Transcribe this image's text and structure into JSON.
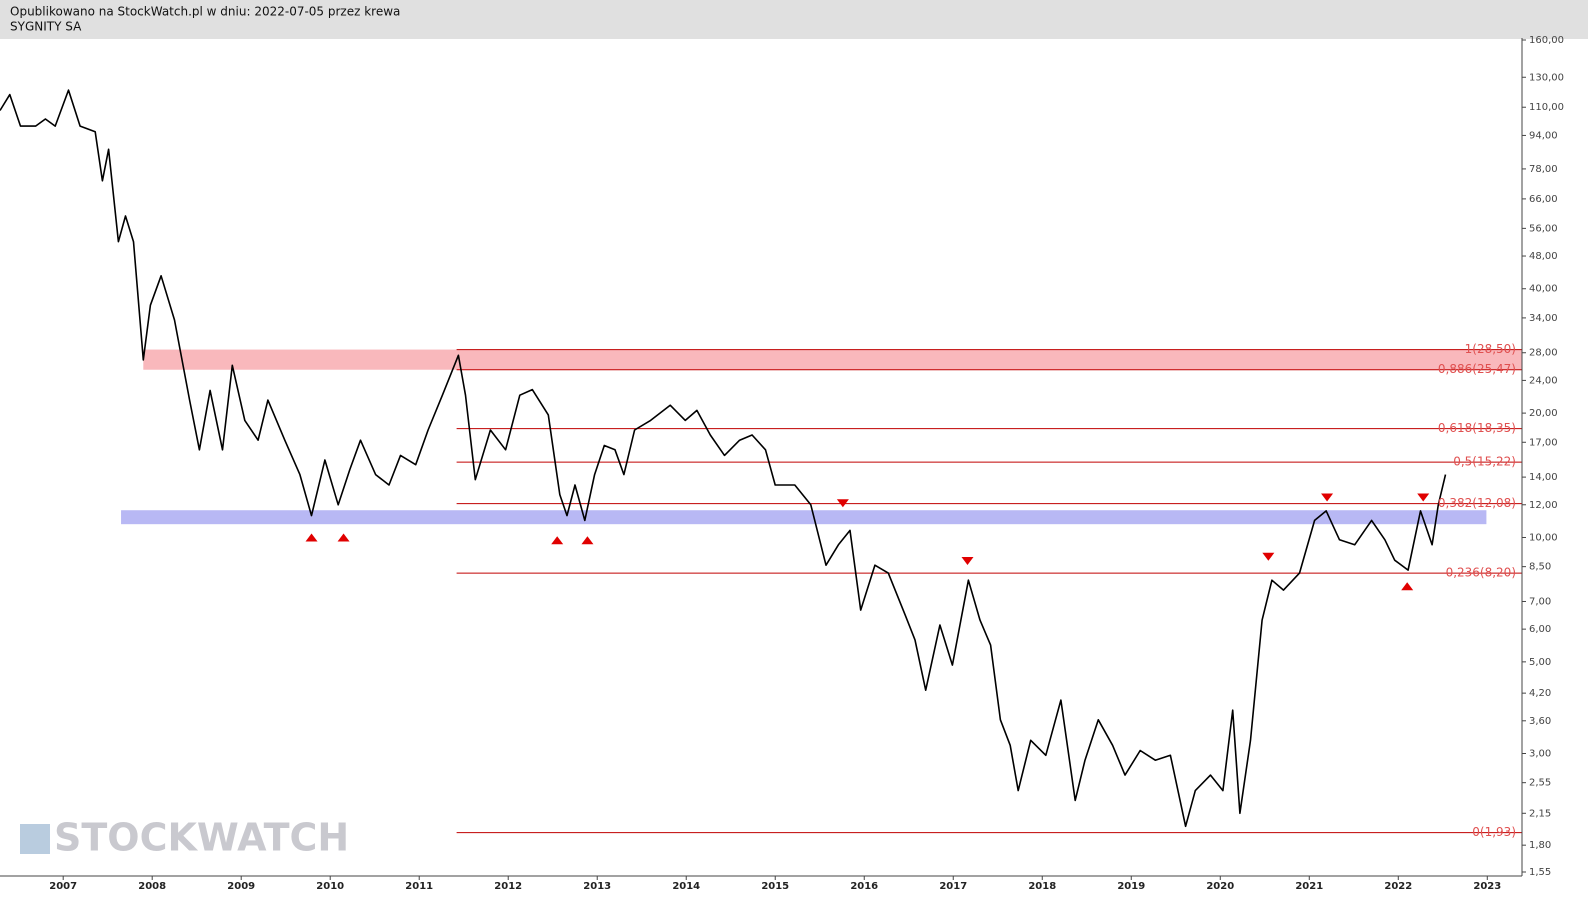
{
  "chart_data": {
    "type": "line",
    "header": "Opublikowano na StockWatch.pl w dniu: 2022-07-05 przez krewa",
    "title": "SYGNITY SA",
    "watermark": "STOCKWATCH",
    "log_scale": true,
    "color": "#000000",
    "xlim": [
      2006.29,
      2023.39
    ],
    "xticks": [
      2007,
      2008,
      2009,
      2010,
      2011,
      2012,
      2013,
      2014,
      2015,
      2016,
      2017,
      2018,
      2019,
      2020,
      2021,
      2022,
      2023
    ],
    "ylim": [
      1.55,
      160
    ],
    "yticks": [
      {
        "value": 1.55,
        "label": "1,55"
      },
      {
        "value": 1.8,
        "label": "1,80"
      },
      {
        "value": 2.15,
        "label": "2,15"
      },
      {
        "value": 2.55,
        "label": "2,55"
      },
      {
        "value": 3,
        "label": "3,00"
      },
      {
        "value": 3.6,
        "label": "3,60"
      },
      {
        "value": 4.2,
        "label": "4,20"
      },
      {
        "value": 5,
        "label": "5,00"
      },
      {
        "value": 6,
        "label": "6,00"
      },
      {
        "value": 7,
        "label": "7,00"
      },
      {
        "value": 8.5,
        "label": "8,50"
      },
      {
        "value": 10,
        "label": "10,00"
      },
      {
        "value": 12,
        "label": "12,00"
      },
      {
        "value": 14,
        "label": "14,00"
      },
      {
        "value": 17,
        "label": "17,00"
      },
      {
        "value": 20,
        "label": "20,00"
      },
      {
        "value": 24,
        "label": "24,00"
      },
      {
        "value": 28,
        "label": "28,00"
      },
      {
        "value": 34,
        "label": "34,00"
      },
      {
        "value": 40,
        "label": "40,00"
      },
      {
        "value": 48,
        "label": "48,00"
      },
      {
        "value": 56,
        "label": "56,00"
      },
      {
        "value": 66,
        "label": "66,00"
      },
      {
        "value": 78,
        "label": "78,00"
      },
      {
        "value": 94,
        "label": "94,00"
      },
      {
        "value": 110,
        "label": "110,00"
      },
      {
        "value": 130,
        "label": "130,00"
      },
      {
        "value": 160,
        "label": "160,00"
      }
    ],
    "x": [
      2006.29,
      2006.4,
      2006.52,
      2006.69,
      2006.8,
      2006.91,
      2007.06,
      2007.19,
      2007.36,
      2007.44,
      2007.51,
      2007.62,
      2007.7,
      2007.79,
      2007.9,
      2007.98,
      2008.1,
      2008.25,
      2008.42,
      2008.53,
      2008.65,
      2008.79,
      2008.9,
      2009.04,
      2009.19,
      2009.3,
      2009.49,
      2009.66,
      2009.79,
      2009.94,
      2010.09,
      2010.22,
      2010.34,
      2010.51,
      2010.66,
      2010.79,
      2010.96,
      2011.1,
      2011.26,
      2011.44,
      2011.52,
      2011.63,
      2011.8,
      2011.97,
      2012.13,
      2012.27,
      2012.45,
      2012.58,
      2012.66,
      2012.75,
      2012.86,
      2012.97,
      2013.08,
      2013.2,
      2013.3,
      2013.42,
      2013.6,
      2013.82,
      2013.99,
      2014.12,
      2014.27,
      2014.43,
      2014.6,
      2014.74,
      2014.89,
      2015.0,
      2015.22,
      2015.4,
      2015.57,
      2015.71,
      2015.84,
      2015.96,
      2016.12,
      2016.27,
      2016.46,
      2016.57,
      2016.69,
      2016.85,
      2016.99,
      2017.17,
      2017.3,
      2017.42,
      2017.53,
      2017.64,
      2017.73,
      2017.87,
      2018.04,
      2018.21,
      2018.37,
      2018.48,
      2018.63,
      2018.79,
      2018.93,
      2019.1,
      2019.27,
      2019.44,
      2019.61,
      2019.72,
      2019.89,
      2020.03,
      2020.14,
      2020.22,
      2020.34,
      2020.47,
      2020.58,
      2020.71,
      2020.89,
      2021.06,
      2021.19,
      2021.34,
      2021.51,
      2021.7,
      2021.85,
      2021.96,
      2022.11,
      2022.25,
      2022.38,
      2022.45,
      2022.53
    ],
    "values": [
      108,
      118,
      99,
      99,
      103,
      99,
      121,
      99,
      96,
      73,
      87,
      52,
      60,
      52,
      26.9,
      36.5,
      43,
      33.6,
      21.5,
      16.3,
      22.7,
      16.3,
      26.1,
      19.2,
      17.2,
      21.5,
      17.2,
      14.2,
      11.3,
      15.4,
      12.0,
      14.6,
      17.2,
      14.2,
      13.4,
      15.8,
      15.0,
      18.2,
      22.1,
      27.6,
      22.1,
      13.8,
      18.2,
      16.3,
      22.1,
      22.8,
      19.8,
      12.7,
      11.3,
      13.4,
      11.0,
      14.2,
      16.7,
      16.3,
      14.2,
      18.2,
      19.2,
      20.9,
      19.2,
      20.3,
      17.7,
      15.8,
      17.2,
      17.7,
      16.3,
      13.4,
      13.4,
      12.0,
      8.57,
      9.6,
      10.4,
      6.67,
      8.57,
      8.2,
      6.49,
      5.65,
      4.27,
      6.14,
      4.91,
      7.88,
      6.31,
      5.49,
      3.62,
      3.14,
      2.44,
      3.23,
      2.97,
      4.04,
      2.31,
      2.89,
      3.62,
      3.14,
      2.66,
      3.05,
      2.89,
      2.97,
      2.0,
      2.44,
      2.66,
      2.44,
      3.82,
      2.15,
      3.23,
      6.31,
      7.88,
      7.46,
      8.2,
      11.0,
      11.6,
      9.87,
      9.6,
      11.0,
      9.87,
      8.81,
      8.34,
      11.6,
      9.6,
      12.0,
      14.2
    ],
    "level_color": "#c00000",
    "level_start": 2011.42,
    "levels": [
      {
        "value": 28.5,
        "label": "1(28,50)"
      },
      {
        "value": 25.47,
        "label": "0,886(25,47)"
      },
      {
        "value": 18.35,
        "label": "0,618(18,35)"
      },
      {
        "value": 15.22,
        "label": "0,5(15,22)"
      },
      {
        "value": 12.08,
        "label": "0,382(12,08)"
      },
      {
        "value": 8.2,
        "label": "0,236(8,20)"
      },
      {
        "value": 1.93,
        "label": "0(1,93)"
      }
    ],
    "zones": [
      {
        "from": 2007.9,
        "to": 2023.39,
        "low": 25.47,
        "high": 28.5,
        "color": "#f9b8bc"
      },
      {
        "from": 2007.65,
        "to": 2022.99,
        "low": 10.77,
        "high": 11.64,
        "color": "#b8b8f4"
      }
    ],
    "marker_color": "#e00000",
    "markers": [
      {
        "x": 2009.79,
        "value": 10.0,
        "direction": "up"
      },
      {
        "x": 2010.15,
        "value": 10.0,
        "direction": "up"
      },
      {
        "x": 2012.55,
        "value": 9.85,
        "direction": "up"
      },
      {
        "x": 2012.89,
        "value": 9.85,
        "direction": "up"
      },
      {
        "x": 2015.76,
        "value": 12.1,
        "direction": "down"
      },
      {
        "x": 2017.16,
        "value": 8.77,
        "direction": "down"
      },
      {
        "x": 2020.54,
        "value": 8.98,
        "direction": "down"
      },
      {
        "x": 2021.2,
        "value": 12.5,
        "direction": "down"
      },
      {
        "x": 2022.28,
        "value": 12.5,
        "direction": "down"
      },
      {
        "x": 2022.1,
        "value": 7.62,
        "direction": "up"
      }
    ]
  }
}
